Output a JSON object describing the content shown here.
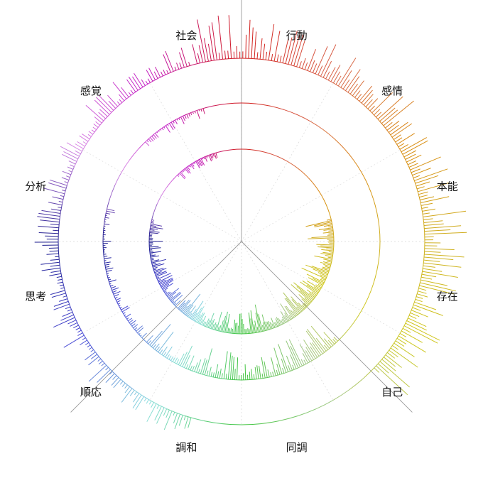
{
  "chart_data": {
    "type": "radial-bar",
    "title": "",
    "categories": [
      {
        "label": "行動",
        "color": "#d11a1a"
      },
      {
        "label": "感情",
        "color": "#d9694d"
      },
      {
        "label": "本能",
        "color": "#d98c10"
      },
      {
        "label": "存在",
        "color": "#cfb020"
      },
      {
        "label": "自己",
        "color": "#cfc81e"
      },
      {
        "label": "同調",
        "color": "#a6c98a"
      },
      {
        "label": "調和",
        "color": "#3ec43e"
      },
      {
        "label": "順応",
        "color": "#8fe0e0"
      },
      {
        "label": "思考",
        "color": "#4a4ad6"
      },
      {
        "label": "分析",
        "color": "#1a1a8c"
      },
      {
        "label": "感覚",
        "color": "#d98ce6"
      },
      {
        "label": "社会",
        "color": "#c21bc2"
      }
    ],
    "rings": [
      "inner",
      "middle",
      "outer"
    ],
    "sector_highlight": {
      "start_category": "同調",
      "end_category": "順応",
      "ring_extent": [
        "inner",
        "outer"
      ]
    },
    "series_activity": [
      {
        "ring": "outer",
        "start_category": "行動",
        "end_category": "自己",
        "level": "high"
      },
      {
        "ring": "outer",
        "start_category": "順応",
        "end_category": "社会",
        "level": "medium"
      },
      {
        "ring": "middle",
        "start_category": "同調",
        "end_category": "順応",
        "level": "high"
      },
      {
        "ring": "middle",
        "start_category": "思考",
        "end_category": "分析",
        "level": "low"
      },
      {
        "ring": "middle",
        "start_category": "社会",
        "end_category": "社会",
        "level": "low"
      },
      {
        "ring": "inner",
        "start_category": "存在",
        "end_category": "順応",
        "level": "high"
      },
      {
        "ring": "inner",
        "start_category": "思考",
        "end_category": "分析",
        "level": "medium"
      },
      {
        "ring": "inner",
        "start_category": "社会",
        "end_category": "社会",
        "level": "low"
      }
    ],
    "grid": true,
    "legend": "none"
  }
}
